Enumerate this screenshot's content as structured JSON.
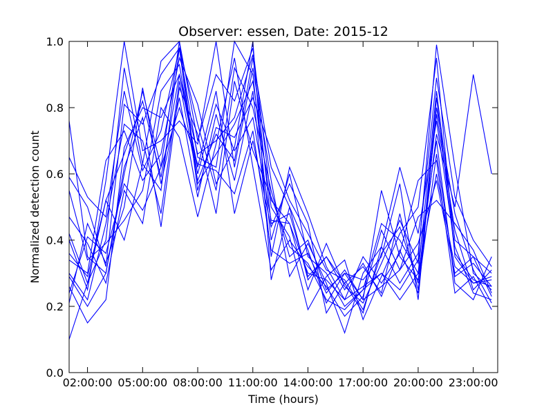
{
  "chart_data": {
    "type": "line",
    "title": "Observer: essen, Date: 2015-12",
    "xlabel": "Time (hours)",
    "ylabel": "Normalized detection count",
    "x_unit": "hours",
    "xlim": [
      1.0,
      24.33
    ],
    "ylim": [
      0.0,
      1.0
    ],
    "x_ticks": [
      {
        "value": 2,
        "label": "02:00:00"
      },
      {
        "value": 5,
        "label": "05:00:00"
      },
      {
        "value": 8,
        "label": "08:00:00"
      },
      {
        "value": 11,
        "label": "11:00:00"
      },
      {
        "value": 14,
        "label": "14:00:00"
      },
      {
        "value": 17,
        "label": "17:00:00"
      },
      {
        "value": 20,
        "label": "20:00:00"
      },
      {
        "value": 23,
        "label": "23:00:00"
      }
    ],
    "y_ticks": [
      {
        "value": 0.0,
        "label": "0.0"
      },
      {
        "value": 0.2,
        "label": "0.2"
      },
      {
        "value": 0.4,
        "label": "0.4"
      },
      {
        "value": 0.6,
        "label": "0.6"
      },
      {
        "value": 0.8,
        "label": "0.8"
      },
      {
        "value": 1.0,
        "label": "1.0"
      }
    ],
    "grid": false,
    "legend": "none",
    "line_color": "#0000ff",
    "x": [
      1.0,
      2.0,
      3.0,
      4.0,
      5.0,
      6.0,
      7.0,
      8.0,
      9.0,
      10.0,
      11.0,
      12.0,
      13.0,
      14.0,
      15.0,
      16.0,
      17.0,
      18.0,
      19.0,
      20.0,
      21.0,
      22.0,
      23.0,
      24.0
    ],
    "series": [
      {
        "values": [
          0.76,
          0.35,
          0.3,
          0.6,
          0.85,
          0.62,
          1.0,
          0.7,
          0.9,
          0.82,
          0.98,
          0.52,
          0.45,
          0.3,
          0.28,
          0.22,
          0.26,
          0.3,
          0.25,
          0.34,
          0.99,
          0.62,
          0.3,
          0.25
        ]
      },
      {
        "values": [
          0.59,
          0.5,
          0.32,
          0.81,
          0.75,
          0.9,
          0.98,
          0.65,
          0.62,
          1.0,
          0.9,
          0.4,
          0.6,
          0.35,
          0.3,
          0.2,
          0.25,
          0.45,
          0.4,
          0.3,
          0.85,
          0.4,
          0.35,
          0.3
        ]
      },
      {
        "values": [
          0.42,
          0.27,
          0.4,
          0.92,
          0.63,
          0.55,
          0.98,
          0.75,
          0.55,
          0.92,
          0.8,
          0.55,
          0.35,
          0.4,
          0.25,
          0.3,
          0.22,
          0.55,
          0.35,
          0.28,
          0.72,
          0.5,
          0.9,
          0.6
        ]
      },
      {
        "values": [
          0.3,
          0.22,
          0.45,
          0.75,
          0.7,
          0.48,
          0.88,
          0.58,
          0.72,
          0.64,
          0.95,
          0.62,
          0.5,
          0.28,
          0.35,
          0.27,
          0.18,
          0.38,
          0.62,
          0.42,
          0.76,
          0.38,
          0.24,
          0.22
        ]
      },
      {
        "values": [
          0.26,
          0.15,
          0.22,
          0.68,
          0.8,
          0.77,
          0.9,
          0.62,
          0.85,
          0.48,
          0.7,
          0.44,
          0.57,
          0.45,
          0.18,
          0.27,
          0.32,
          0.24,
          0.48,
          0.25,
          0.66,
          0.29,
          0.33,
          0.26
        ]
      },
      {
        "values": [
          0.1,
          0.27,
          0.52,
          0.4,
          0.63,
          0.94,
          1.0,
          0.57,
          0.66,
          0.75,
          0.88,
          0.5,
          0.41,
          0.19,
          0.29,
          0.34,
          0.16,
          0.29,
          0.42,
          0.5,
          0.95,
          0.35,
          0.27,
          0.29
        ]
      },
      {
        "values": [
          0.47,
          0.39,
          0.27,
          0.55,
          0.45,
          0.8,
          0.71,
          0.47,
          0.69,
          0.95,
          0.62,
          0.31,
          0.4,
          0.32,
          0.26,
          0.17,
          0.23,
          0.43,
          0.31,
          0.47,
          0.52,
          0.45,
          0.37,
          0.24
        ]
      },
      {
        "values": [
          0.34,
          0.3,
          0.64,
          0.73,
          0.58,
          0.66,
          0.95,
          0.81,
          0.57,
          0.68,
          1.0,
          0.28,
          0.5,
          0.37,
          0.21,
          0.3,
          0.28,
          0.35,
          0.57,
          0.22,
          0.8,
          0.48,
          0.31,
          0.21
        ]
      },
      {
        "values": [
          0.21,
          0.45,
          0.33,
          0.5,
          0.86,
          0.57,
          0.83,
          0.53,
          0.78,
          0.58,
          0.85,
          0.35,
          0.62,
          0.48,
          0.32,
          0.22,
          0.35,
          0.27,
          0.36,
          0.58,
          0.64,
          0.24,
          0.29,
          0.19
        ]
      },
      {
        "values": [
          0.4,
          0.25,
          0.58,
          1.0,
          0.67,
          0.7,
          0.76,
          0.69,
          1.0,
          0.62,
          0.92,
          0.58,
          0.29,
          0.39,
          0.27,
          0.12,
          0.3,
          0.38,
          0.27,
          0.36,
          0.89,
          0.53,
          0.4,
          0.32
        ]
      },
      {
        "values": [
          0.55,
          0.34,
          0.39,
          0.46,
          0.55,
          0.85,
          0.93,
          0.6,
          0.81,
          0.67,
          0.77,
          0.46,
          0.45,
          0.25,
          0.39,
          0.26,
          0.21,
          0.33,
          0.46,
          0.33,
          0.7,
          0.27,
          0.22,
          0.35
        ]
      },
      {
        "values": [
          0.29,
          0.2,
          0.3,
          0.62,
          0.77,
          0.44,
          0.86,
          0.72,
          0.48,
          0.88,
          0.67,
          0.53,
          0.38,
          0.33,
          0.22,
          0.19,
          0.25,
          0.3,
          0.22,
          0.3,
          0.6,
          0.32,
          0.27,
          0.28
        ]
      },
      {
        "values": [
          0.65,
          0.53,
          0.47,
          0.85,
          0.61,
          0.73,
          0.98,
          0.55,
          0.74,
          0.71,
          0.83,
          0.67,
          0.52,
          0.42,
          0.31,
          0.28,
          0.19,
          0.36,
          0.44,
          0.27,
          0.78,
          0.43,
          0.25,
          0.31
        ]
      },
      {
        "values": [
          0.24,
          0.41,
          0.36,
          0.57,
          0.49,
          0.62,
          0.8,
          0.63,
          0.61,
          0.54,
          0.73,
          0.37,
          0.33,
          0.36,
          0.24,
          0.31,
          0.22,
          0.26,
          0.31,
          0.39,
          0.58,
          0.3,
          0.35,
          0.23
        ]
      },
      {
        "values": [
          0.36,
          0.29,
          0.52,
          0.66,
          0.82,
          0.59,
          0.9,
          0.66,
          0.7,
          0.77,
          0.96,
          0.45,
          0.48,
          0.29,
          0.35,
          0.25,
          0.33,
          0.23,
          0.37,
          0.24,
          0.83,
          0.36,
          0.28,
          0.26
        ]
      }
    ]
  }
}
